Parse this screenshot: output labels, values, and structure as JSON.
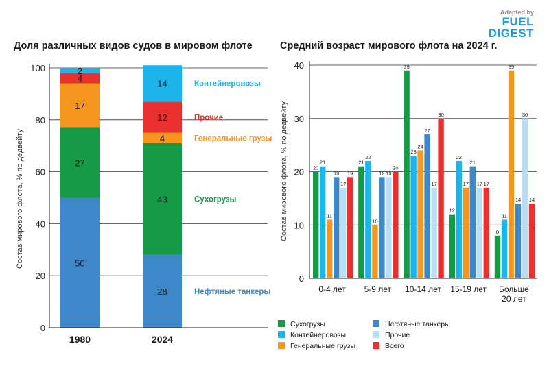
{
  "logo": {
    "adapted": "Adapted by",
    "line1": "FUEL",
    "line2": "DIGEST"
  },
  "chart_data": [
    {
      "type": "bar",
      "stacked": true,
      "title": "Доля различных видов судов в мировом флоте",
      "ylabel": "Состав мирового флота, % по дедвейту",
      "categories": [
        "1980",
        "2024"
      ],
      "ylim": [
        0,
        100
      ],
      "yticks": [
        0,
        20,
        40,
        60,
        80,
        100
      ],
      "series": [
        {
          "name": "Нефтяные танкеры",
          "color": "#3e88c9",
          "values": [
            50,
            28
          ]
        },
        {
          "name": "Сухогрузы",
          "color": "#159a46",
          "values": [
            27,
            43
          ]
        },
        {
          "name": "Генеральные грузы",
          "color": "#f5971f",
          "values": [
            17,
            4
          ]
        },
        {
          "name": "Прочие",
          "color": "#e8312e",
          "values": [
            4,
            12
          ]
        },
        {
          "name": "Контейнеровозы",
          "color": "#1cb4ea",
          "values": [
            2,
            14
          ]
        }
      ],
      "side_labels": [
        "Нефтяные танкеры",
        "Сухогрузы",
        "Генеральные грузы",
        "Прочие",
        "Контейнеровозы"
      ]
    },
    {
      "type": "bar",
      "title": "Средний возраст мирового флота на 2024 г.",
      "ylabel": "Состав мирового флота, % по дедвейту",
      "categories": [
        "0-4 лет",
        "5-9 лет",
        "10-14 лет",
        "15-19 лет",
        "Больше 20 лет"
      ],
      "ylim": [
        0,
        40
      ],
      "yticks": [
        0,
        10,
        20,
        30,
        40
      ],
      "grid": true,
      "series": [
        {
          "name": "Сухогрузы",
          "color": "#159a46",
          "values": [
            20,
            21,
            39,
            12,
            8
          ]
        },
        {
          "name": "Контейнеровозы",
          "color": "#1cb4ea",
          "values": [
            21,
            22,
            23,
            22,
            11
          ]
        },
        {
          "name": "Генеральные грузы",
          "color": "#f5971f",
          "values": [
            11,
            10,
            24,
            17,
            39
          ]
        },
        {
          "name": "Нефтяные танкеры",
          "color": "#3e88c9",
          "values": [
            19,
            19,
            27,
            21,
            14
          ]
        },
        {
          "name": "Прочие",
          "color": "#b9dff5",
          "values": [
            17,
            19,
            17,
            17,
            30
          ]
        },
        {
          "name": "Всего",
          "color": "#e8312e",
          "values": [
            19,
            20,
            30,
            17,
            14
          ]
        }
      ],
      "legend": "bottom"
    }
  ]
}
